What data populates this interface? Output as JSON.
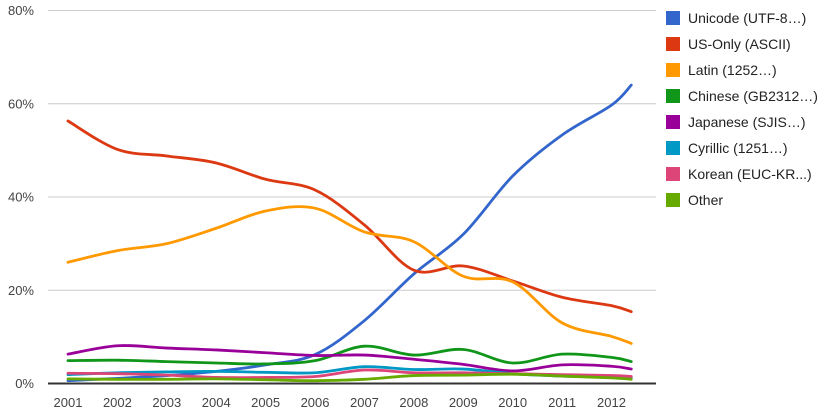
{
  "chart_data": {
    "type": "line",
    "smoothing": "curved",
    "grid": true,
    "legend_position": "right",
    "ylim": [
      0,
      80
    ],
    "xlim": [
      2001,
      2012.4
    ],
    "y_ticks": [
      {
        "value": 0,
        "label": "0%"
      },
      {
        "value": 20,
        "label": "20%"
      },
      {
        "value": 40,
        "label": "40%"
      },
      {
        "value": 60,
        "label": "60%"
      },
      {
        "value": 80,
        "label": "80%"
      }
    ],
    "x_tick_labels": [
      "2001",
      "2002",
      "2003",
      "2004",
      "2005",
      "2006",
      "2007",
      "2008",
      "2009",
      "2010",
      "2011",
      "2012"
    ],
    "x": [
      2001,
      2002,
      2003,
      2004,
      2005,
      2006,
      2007,
      2008,
      2009,
      2010,
      2011,
      2012,
      2012.4
    ],
    "series": [
      {
        "id": "unicode",
        "name": "Unicode (UTF-8…)",
        "color": "#3366cc",
        "values": [
          0.6,
          1.1,
          1.7,
          2.6,
          4.0,
          6.2,
          13.5,
          23.5,
          32.0,
          44.5,
          53.3,
          59.7,
          64.0
        ]
      },
      {
        "id": "us-only",
        "name": "US-Only (ASCII)",
        "color": "#dc3912",
        "values": [
          56.3,
          50.2,
          48.8,
          47.3,
          43.8,
          41.5,
          34.0,
          24.3,
          25.2,
          22.0,
          18.5,
          16.7,
          15.4
        ]
      },
      {
        "id": "latin",
        "name": "Latin (1252…)",
        "color": "#ff9900",
        "values": [
          26.0,
          28.5,
          30.0,
          33.3,
          37.0,
          37.6,
          32.5,
          30.4,
          23.0,
          21.8,
          13.0,
          10.1,
          8.6
        ]
      },
      {
        "id": "chinese",
        "name": "Chinese (GB2312…)",
        "color": "#109618",
        "values": [
          4.9,
          5.0,
          4.7,
          4.4,
          4.2,
          4.9,
          8.0,
          6.1,
          7.3,
          4.4,
          6.3,
          5.6,
          4.7
        ]
      },
      {
        "id": "japanese",
        "name": "Japanese (SJIS…)",
        "color": "#990099",
        "values": [
          6.3,
          8.1,
          7.6,
          7.2,
          6.6,
          6.0,
          6.1,
          5.2,
          4.1,
          2.7,
          4.0,
          3.7,
          3.1
        ]
      },
      {
        "id": "cyrillic",
        "name": "Cyrillic (1251…)",
        "color": "#0099c6",
        "values": [
          1.9,
          2.3,
          2.5,
          2.6,
          2.4,
          2.3,
          3.6,
          3.0,
          3.1,
          2.1,
          1.6,
          1.4,
          1.2
        ]
      },
      {
        "id": "korean",
        "name": "Korean (EUC-KR...)",
        "color": "#dd4477",
        "values": [
          2.2,
          2.1,
          1.8,
          1.3,
          1.3,
          1.5,
          2.9,
          2.3,
          2.3,
          2.1,
          1.9,
          1.7,
          1.5
        ]
      },
      {
        "id": "other",
        "name": "Other",
        "color": "#66aa00",
        "values": [
          1.0,
          0.9,
          0.9,
          1.0,
          0.8,
          0.6,
          0.9,
          1.7,
          1.8,
          2.0,
          1.6,
          1.2,
          0.9
        ]
      }
    ],
    "colors": {
      "background": "#ffffff",
      "gridline": "#cccccc",
      "axis_line": "#333333",
      "axis_label": "#444444",
      "legend_text": "#222222"
    }
  }
}
